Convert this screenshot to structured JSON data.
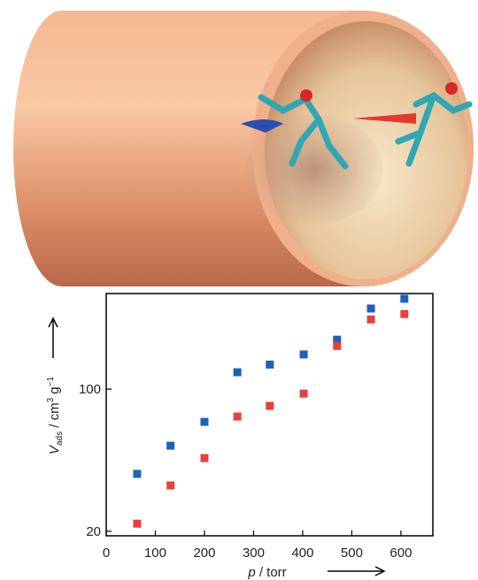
{
  "chart_data": {
    "type": "scatter",
    "x_label": {
      "var": "p",
      "unit": " / torr"
    },
    "y_label": {
      "var": "V",
      "sub": "ads",
      "unit1": " / cm",
      "sup1": "3",
      "unit2": " g",
      "sup2": "−1"
    },
    "x": [
      63,
      131,
      200,
      267,
      333,
      402,
      470,
      539,
      607
    ],
    "series": [
      {
        "color": "#1f5fbf",
        "values": [
          38.3,
          52.7,
          69,
          121,
          132,
          148,
          175,
          249,
          278
        ]
      },
      {
        "color": "#e8403c",
        "values": [
          21.8,
          33.6,
          45.8,
          73.3,
          82.7,
          95,
          163,
          220,
          234
        ]
      }
    ],
    "xlim": [
      0,
      665
    ],
    "xticks": [
      0,
      100,
      200,
      300,
      400,
      500,
      600
    ],
    "ylim": [
      19,
      295
    ],
    "yticks": [
      20,
      100
    ],
    "yscale": "log"
  }
}
